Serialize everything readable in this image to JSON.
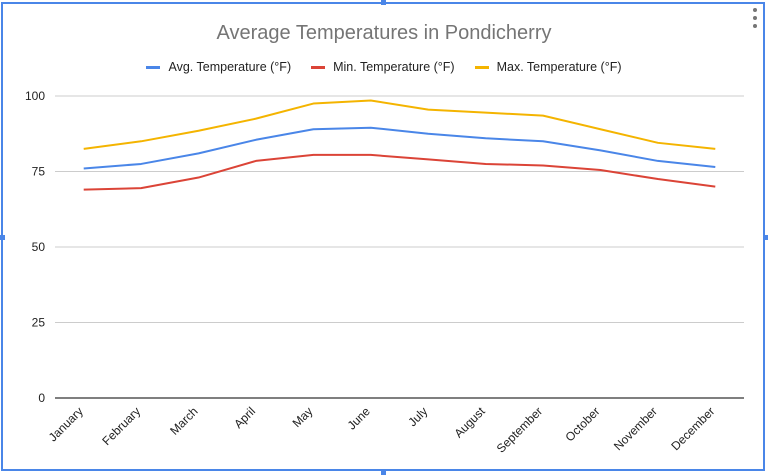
{
  "chart_data": {
    "type": "line",
    "title": "Average Temperatures in Pondicherry",
    "categories": [
      "January",
      "February",
      "March",
      "April",
      "May",
      "June",
      "July",
      "August",
      "September",
      "October",
      "November",
      "December"
    ],
    "series": [
      {
        "name": "Avg. Temperature (°F)",
        "color": "#4a86e8",
        "values": [
          76,
          77.5,
          81,
          85.5,
          89,
          89.5,
          87.5,
          86,
          85,
          82,
          78.5,
          76.5
        ]
      },
      {
        "name": "Min. Temperature (°F)",
        "color": "#db4437",
        "values": [
          69,
          69.5,
          73,
          78.5,
          80.5,
          80.5,
          79,
          77.5,
          77,
          75.5,
          72.5,
          70
        ]
      },
      {
        "name": "Max. Temperature (°F)",
        "color": "#f4b400",
        "values": [
          82.5,
          85,
          88.5,
          92.5,
          97.5,
          98.5,
          95.5,
          94.5,
          93.5,
          89,
          84.5,
          82.5
        ]
      }
    ],
    "yticks": [
      0,
      25,
      50,
      75,
      100
    ],
    "ylim": [
      0,
      100
    ],
    "grid": true,
    "legend_position": "top"
  }
}
